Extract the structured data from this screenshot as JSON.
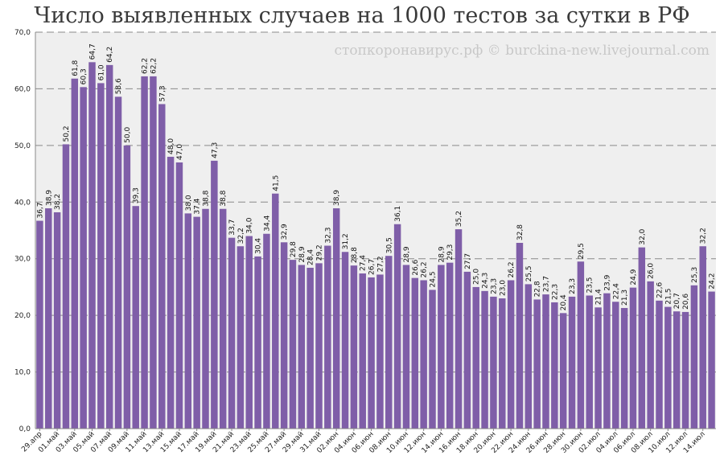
{
  "chart_data": {
    "type": "bar",
    "title": "Число выявленных случаев на 1000 тестов за сутки в РФ",
    "watermark": "стопкоронавирус.рф © burckina-new.livejournal.com",
    "ylim": [
      0,
      70
    ],
    "yticks": [
      "0,0",
      "10,0",
      "20,0",
      "30,0",
      "40,0",
      "50,0",
      "60,0",
      "70,0"
    ],
    "grid": true,
    "bar_color": "#7f5ea8",
    "values": [
      36.7,
      38.9,
      38.2,
      50.2,
      61.8,
      60.3,
      64.7,
      61.0,
      64.2,
      58.6,
      50.0,
      39.3,
      62.2,
      62.2,
      57.3,
      48.0,
      47.0,
      38.0,
      37.4,
      38.8,
      47.3,
      38.8,
      33.7,
      32.2,
      34.0,
      30.4,
      34.4,
      41.5,
      32.9,
      29.8,
      28.9,
      28.4,
      29.2,
      32.3,
      38.9,
      31.2,
      28.8,
      27.4,
      26.7,
      27.2,
      30.5,
      36.1,
      28.9,
      26.6,
      26.2,
      24.5,
      28.9,
      29.3,
      35.2,
      27.7,
      25.0,
      24.3,
      23.3,
      23.0,
      26.2,
      32.8,
      25.5,
      22.8,
      23.7,
      22.3,
      20.4,
      23.3,
      29.5,
      23.5,
      21.4,
      23.9,
      22.4,
      21.3,
      24.9,
      32.0,
      26.0,
      22.6,
      21.5,
      20.7,
      20.6,
      25.3,
      32.2,
      24.2
    ],
    "value_labels": [
      "36,7",
      "38,9",
      "38,2",
      "50,2",
      "61,8",
      "60,3",
      "64,7",
      "61,0",
      "64,2",
      "58,6",
      "50,0",
      "39,3",
      "62,2",
      "62,2",
      "57,3",
      "48,0",
      "47,0",
      "38,0",
      "37,4",
      "38,8",
      "47,3",
      "38,8",
      "33,7",
      "32,2",
      "34,0",
      "30,4",
      "34,4",
      "41,5",
      "32,9",
      "29,8",
      "28,9",
      "28,4",
      "29,2",
      "32,3",
      "38,9",
      "31,2",
      "28,8",
      "27,4",
      "26,7",
      "27,2",
      "30,5",
      "36,1",
      "28,9",
      "26,6",
      "26,2",
      "24,5",
      "28,9",
      "29,3",
      "35,2",
      "27,7",
      "25,0",
      "24,3",
      "23,3",
      "23,0",
      "26,2",
      "32,8",
      "25,5",
      "22,8",
      "23,7",
      "22,3",
      "20,4",
      "23,3",
      "29,5",
      "23,5",
      "21,4",
      "23,9",
      "22,4",
      "21,3",
      "24,9",
      "32,0",
      "26,0",
      "22,6",
      "21,5",
      "20,7",
      "20,6",
      "25,3",
      "32,2",
      "24,2"
    ],
    "x_tick_labels": [
      "29.апр",
      "01.май",
      "03.май",
      "05.май",
      "07.май",
      "09.май",
      "11.май",
      "13.май",
      "15.май",
      "17.май",
      "19.май",
      "21.май",
      "23.май",
      "25.май",
      "27.май",
      "29.май",
      "31.май",
      "02.июн",
      "04.июн",
      "06.июн",
      "08.июн",
      "10.июн",
      "12.июн",
      "14.июн",
      "16.июн",
      "18.июн",
      "20.июн",
      "22.июн",
      "24.июн",
      "26.июн",
      "28.июн",
      "30.июн",
      "02.июл",
      "04.июл",
      "06.июл",
      "08.июл",
      "10.июл",
      "12.июл",
      "14.июл"
    ]
  }
}
